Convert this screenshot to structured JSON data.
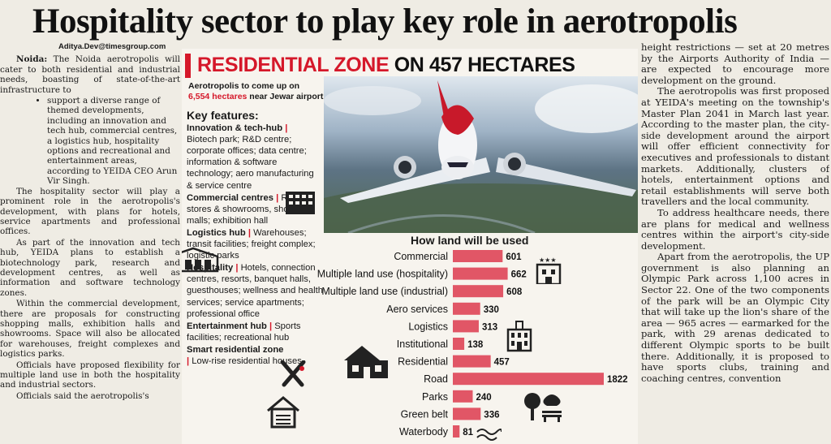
{
  "headline": "Hospitality sector to play key role in aerotropolis",
  "byline": "Aditya.Dev@timesgroup.com",
  "left_column": {
    "lead_place": "Noida:",
    "lead_text": " The Noida aerotropolis will cater to both residential and industrial needs, boasting of state-of-the-art infrastructure to",
    "bullets": [
      "support a diverse range of themed developments, including an innovation and tech hub, commercial centres, a logistics hub, hospitality options and recreational and entertainment areas, according to YEIDA CEO Arun Vir Singh."
    ],
    "paragraphs": [
      "The hospitality sector will play a prominent role in the aerotropolis's development, with plans for hotels, service apartments and professional offices.",
      "As part of the innovation and tech hub, YEIDA plans to establish a biotechnology park, research and development centres, as well as information and software technology zones.",
      "Within the commercial development, there are proposals for constructing shopping malls, exhibition halls and showrooms. Space will also be allocated for warehouses, freight complexes and logistics parks.",
      "Officials have proposed flexibility for multiple land use in both the hospitality and industrial sectors.",
      "Officials said the aerotropolis's"
    ]
  },
  "right_column": {
    "paragraphs": [
      "height restrictions — set at 20 metres by the Airports Authority of India — are expected to encourage more development on the ground.",
      "The aerotropolis was first proposed at YEIDA's meeting on the township's Master Plan 2041 in March last year. According to the master plan, the city-side development around the airport will offer efficient connectivity for executives and professionals to distant markets. Additionally, clusters of hotels, entertainment options and retail establishments will serve both travellers and the local community.",
      "To address healthcare needs, there are plans for medical and wellness centres within the airport's city-side development.",
      "Apart from the aerotropolis, the UP government is also planning an Olympic Park across 1,100 acres in Sector 22. One of the two components of the park will be an Olympic City that will take up the lion's share of the area — 965 acres — earmarked for the park, with 29 arenas dedicated to different Olympic sports to be built there. Additionally, it is proposed to have sports clubs, training and coaching centres, convention"
    ]
  },
  "infographic": {
    "banner_red": "RESIDENTIAL ZONE",
    "banner_black": " ON 457 HECTARES",
    "subhead_pre": "Aerotropolis to come up on",
    "subhead_highlight": "6,554 hectares",
    "subhead_post": " near Jewar airport",
    "key_features_title": "Key features:",
    "features": [
      {
        "name": "Innovation & tech-hub",
        "detail": "Biotech park; R&D centre; corporate offices; data centre; information & software technology; aero manufacturing & service centre"
      },
      {
        "name": "Commercial centres",
        "detail": "Retail stores & showrooms, shopping malls; exhibition hall"
      },
      {
        "name": "Logistics hub",
        "detail": "Warehouses; transit facilities; freight complex; logistic parks"
      },
      {
        "name": "Hospitality",
        "detail": "Hotels, connection centres, resorts, banquet halls, guesthouses; wellness and health services; service apartments; professional office"
      },
      {
        "name": "Entertainment hub",
        "detail": "Sports facilities; recreational hub"
      },
      {
        "name": "Smart residential zone",
        "detail": "Low-rise residential houses"
      }
    ],
    "icons": [
      "office-building-icon",
      "warehouse-icon",
      "hotel-icon",
      "government-building-icon",
      "house-icon",
      "cricket-bats-icon",
      "garage-house-icon",
      "park-bench-icon",
      "water-icon"
    ]
  },
  "chart_data": {
    "type": "bar",
    "title": "How land will be used",
    "categories": [
      "Commercial",
      "Multiple land use (hospitality)",
      "Multiple land use (industrial)",
      "Aero services",
      "Logistics",
      "Institutional",
      "Residential",
      "Road",
      "Parks",
      "Green belt",
      "Waterbody"
    ],
    "values": [
      601,
      662,
      608,
      330,
      313,
      138,
      457,
      1822,
      240,
      336,
      81
    ],
    "value_labels": [
      "601",
      "662",
      "608",
      "330",
      "313",
      "138",
      "457",
      "1822",
      "240",
      "336",
      "81"
    ],
    "bar_color": "#e15666",
    "xlim": [
      0,
      1822
    ]
  }
}
